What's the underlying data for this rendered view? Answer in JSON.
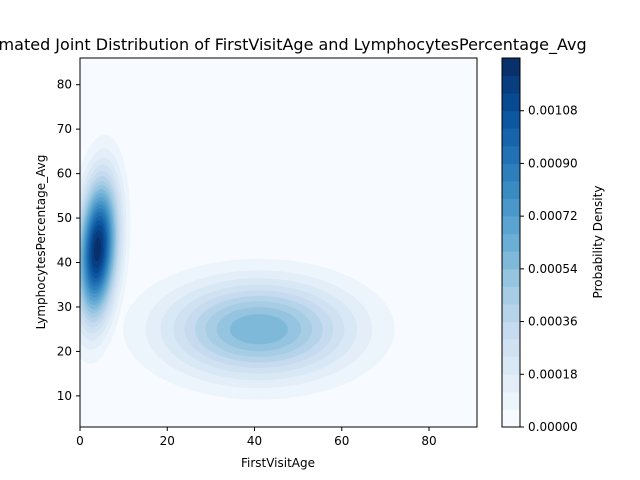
{
  "chart_data": {
    "type": "kde_contourf",
    "title": "Estimated Joint Distribution of FirstVisitAge and LymphocytesPercentage_Avg",
    "xlabel": "FirstVisitAge",
    "ylabel": "LymphocytesPercentage_Avg",
    "xlim": [
      0,
      91
    ],
    "ylim": [
      3,
      86
    ],
    "x_ticks": [
      0,
      20,
      40,
      60,
      80
    ],
    "y_ticks": [
      10,
      20,
      30,
      40,
      50,
      60,
      70,
      80
    ],
    "colormap": "Blues",
    "colorbar": {
      "label": "Probability Density",
      "range": [
        0,
        0.00126
      ],
      "ticks": [
        0.0,
        0.00018,
        0.00036,
        0.00054,
        0.00072,
        0.0009,
        0.00108
      ],
      "tick_labels": [
        "0.00000",
        "0.00018",
        "0.00036",
        "0.00054",
        "0.00072",
        "0.00090",
        "0.00108"
      ],
      "levels": 21
    },
    "clusters": [
      {
        "center_x": 4,
        "center_y": 43,
        "peak_density": 0.00124
      },
      {
        "center_x": 41,
        "center_y": 25,
        "peak_density": 0.0006
      }
    ],
    "grid": false
  }
}
